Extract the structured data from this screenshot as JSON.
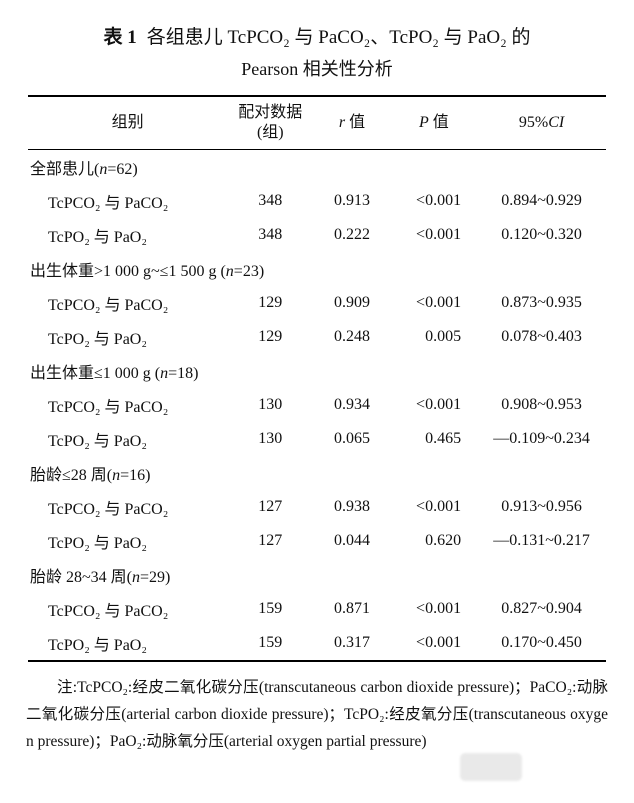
{
  "title": {
    "label": "表 1",
    "line1": "各组患儿 TcPCO₂ 与 PaCO₂、TcPO₂ 与 PaO₂ 的",
    "line2": "Pearson 相关性分析"
  },
  "table": {
    "headers": {
      "group": "组别",
      "pairs_line1": "配对数据",
      "pairs_line2": "(组)",
      "r_sym": "r",
      "r_text": " 值",
      "p_sym": "P",
      "p_text": " 值",
      "ci_pre": "95%",
      "ci_it": "CI"
    },
    "sections": [
      {
        "label_pre": "全部患儿(",
        "var": "n",
        "rest": "=62)",
        "rows": [
          {
            "label": "TcPCO₂ 与 PaCO₂",
            "n": "348",
            "r": "0.913",
            "p": "<0.001",
            "ci": "0.894~0.929"
          },
          {
            "label": "TcPO₂ 与 PaO₂",
            "n": "348",
            "r": "0.222",
            "p": "<0.001",
            "ci": "0.120~0.320"
          }
        ]
      },
      {
        "label_pre": "出生体重>1 000 g~≤1 500 g (",
        "var": "n",
        "rest": "=23)",
        "rows": [
          {
            "label": "TcPCO₂ 与 PaCO₂",
            "n": "129",
            "r": "0.909",
            "p": "<0.001",
            "ci": "0.873~0.935"
          },
          {
            "label": "TcPO₂ 与 PaO₂",
            "n": "129",
            "r": "0.248",
            "p": "0.005",
            "ci": "0.078~0.403"
          }
        ]
      },
      {
        "label_pre": "出生体重≤1 000 g (",
        "var": "n",
        "rest": "=18)",
        "rows": [
          {
            "label": "TcPCO₂ 与 PaCO₂",
            "n": "130",
            "r": "0.934",
            "p": "<0.001",
            "ci": "0.908~0.953"
          },
          {
            "label": "TcPO₂ 与 PaO₂",
            "n": "130",
            "r": "0.065",
            "p": "0.465",
            "ci": "—0.109~0.234"
          }
        ]
      },
      {
        "label_pre": "胎龄≤28 周(",
        "var": "n",
        "rest": "=16)",
        "rows": [
          {
            "label": "TcPCO₂ 与 PaCO₂",
            "n": "127",
            "r": "0.938",
            "p": "<0.001",
            "ci": "0.913~0.956"
          },
          {
            "label": "TcPO₂ 与 PaO₂",
            "n": "127",
            "r": "0.044",
            "p": "0.620",
            "ci": "—0.131~0.217"
          }
        ]
      },
      {
        "label_pre": "胎龄 28~34 周(",
        "var": "n",
        "rest": "=29)",
        "rows": [
          {
            "label": "TcPCO₂ 与 PaCO₂",
            "n": "159",
            "r": "0.871",
            "p": "<0.001",
            "ci": "0.827~0.904"
          },
          {
            "label": "TcPO₂ 与 PaO₂",
            "n": "159",
            "r": "0.317",
            "p": "<0.001",
            "ci": "0.170~0.450"
          }
        ]
      }
    ]
  },
  "note": "注:TcPCO₂:经皮二氧化碳分压(transcutaneous carbon dioxide pressure)；PaCO₂:动脉二氧化碳分压(arterial carbon dioxide pressure)；TcPO₂:经皮氧分压(transcutaneous oxygen pressure)；PaO₂:动脉氧分压(arterial oxygen partial pressure)"
}
